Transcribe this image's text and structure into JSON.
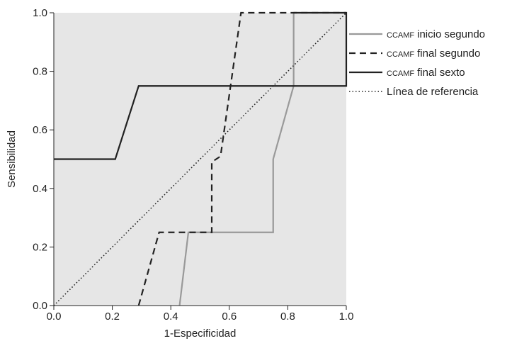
{
  "chart_data": {
    "type": "line",
    "xlabel": "1-Especificidad",
    "ylabel": "Sensibilidad",
    "xlim": [
      0,
      1
    ],
    "ylim": [
      0,
      1
    ],
    "xticks": [
      0.0,
      0.2,
      0.4,
      0.6,
      0.8,
      1.0
    ],
    "yticks": [
      0.0,
      0.2,
      0.4,
      0.6,
      0.8,
      1.0
    ],
    "xtick_labels": [
      "0.0",
      "0.2",
      "0.4",
      "0.6",
      "0.8",
      "1.0"
    ],
    "ytick_labels": [
      "0.0",
      "0.2",
      "0.4",
      "0.6",
      "0.8",
      "1.0"
    ],
    "background": "#e6e6e6",
    "grid": false,
    "legend_position": "right",
    "series": [
      {
        "name_prefix": "CCAMF",
        "name_rest": "inicio segundo",
        "color": "#999999",
        "style": "solid",
        "x": [
          0.43,
          0.46,
          0.75,
          0.75,
          0.82,
          0.82,
          1.0
        ],
        "y": [
          0.0,
          0.25,
          0.25,
          0.5,
          0.75,
          1.0,
          1.0
        ]
      },
      {
        "name_prefix": "CCAMF",
        "name_rest": "final segundo",
        "color": "#222222",
        "style": "dashed",
        "x": [
          0.29,
          0.36,
          0.54,
          0.54,
          0.57,
          0.64,
          1.0
        ],
        "y": [
          0.0,
          0.25,
          0.25,
          0.49,
          0.51,
          1.0,
          1.0
        ]
      },
      {
        "name_prefix": "CCAMF",
        "name_rest": "final sexto",
        "color": "#222222",
        "style": "solid",
        "x": [
          0.0,
          0.21,
          0.29,
          1.0,
          1.0,
          0.82
        ],
        "y": [
          0.5,
          0.5,
          0.75,
          0.75,
          1.0,
          1.0
        ]
      },
      {
        "name_prefix": "",
        "name_rest": "Línea de referencia",
        "color": "#222222",
        "style": "dotted",
        "x": [
          0.0,
          1.0
        ],
        "y": [
          0.0,
          1.0
        ]
      }
    ]
  }
}
